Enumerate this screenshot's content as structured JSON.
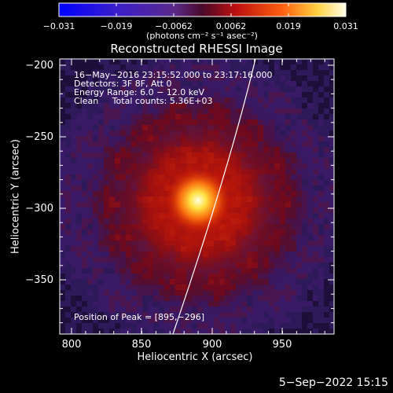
{
  "colorbar": {
    "ticks": [
      "−0.031",
      "−0.019",
      "−0.0062",
      "0.0062",
      "0.019",
      "0.031"
    ],
    "units": "(photons cm⁻² s⁻¹ asec⁻²)",
    "range": [
      -0.031,
      0.031
    ]
  },
  "plot": {
    "title": "Reconstructed RHESSI Image",
    "xlabel": "Heliocentric X (arcsec)",
    "ylabel": "Heliocentric Y (arcsec)",
    "xticks": [
      "800",
      "850",
      "900",
      "950"
    ],
    "yticks": [
      "−200",
      "−250",
      "−300",
      "−350"
    ],
    "xrange": [
      790,
      985
    ],
    "yrange": [
      -385,
      -195
    ],
    "annotations": {
      "time": "16−May−2016 23:15:52.000 to 23:17:16.000",
      "detectors": "Detectors: 3F 8F, Att 0",
      "energy": "Energy Range: 6.0 − 12.0 keV",
      "clean": "Clean     Total counts: 5.36E+03",
      "peak": "Position of Peak = [895,−296]"
    },
    "peak": [
      895,
      -296
    ]
  },
  "footer": {
    "date": "5−Sep−2022 15:15"
  },
  "colors": {
    "background": "#000000",
    "axes": "#ffffff",
    "limb_line": "#ffffff"
  }
}
